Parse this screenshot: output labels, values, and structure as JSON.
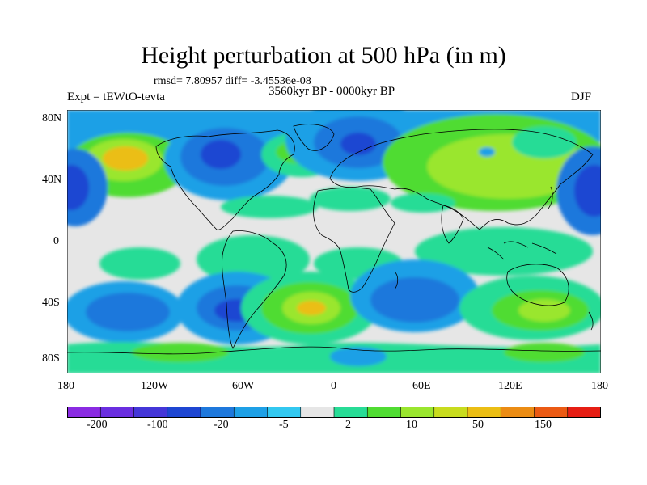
{
  "title": "Height perturbation at 500 hPa (in m)",
  "stats": "rmsd= 7.80957 diff= -3.45536e-08",
  "experiment": "Expt = tEWtO-tevta",
  "period": "3560kyr BP - 0000kyr BP",
  "season": "DJF",
  "y_tick_labels": [
    "80N",
    "40N",
    "0",
    "40S",
    "80S"
  ],
  "x_tick_labels": [
    "180",
    "120W",
    "60W",
    "0",
    "60E",
    "120E",
    "180"
  ],
  "colorbar": {
    "labels": [
      "-200",
      "-100",
      "-20",
      "-5",
      "2",
      "10",
      "50",
      "150"
    ],
    "colors": [
      "#8a2be2",
      "#6a2ee0",
      "#4436d8",
      "#1e46d2",
      "#1e78dc",
      "#1ea0e6",
      "#32c8f0",
      "#e6e6e6",
      "#28dc96",
      "#50dc32",
      "#9ae62e",
      "#c8dc1e",
      "#ebbe14",
      "#eb8c14",
      "#eb5a14",
      "#e61e14"
    ]
  },
  "colors": {
    "background_field": "#e6e6e6",
    "coastline": "#000000"
  }
}
